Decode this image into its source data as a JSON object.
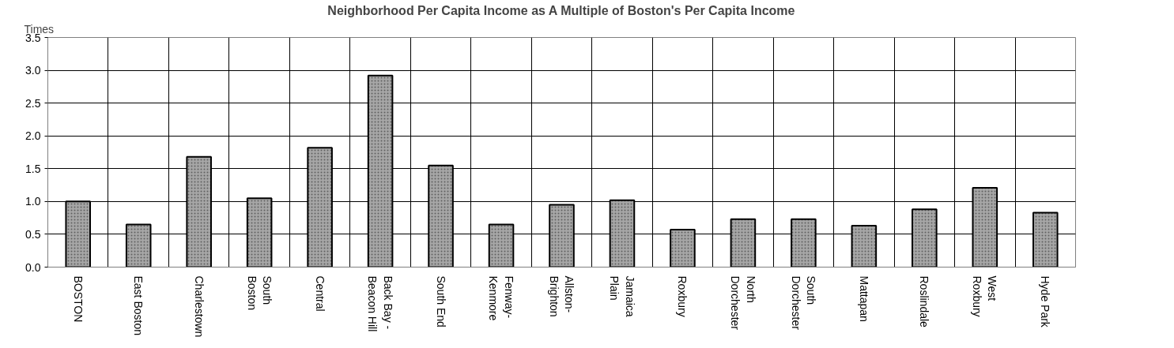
{
  "chart_data": {
    "type": "bar",
    "title": "Neighborhood Per Capita Income as A Multiple of Boston's Per Capita Income",
    "ylabel": "Times",
    "categories": [
      "BOSTON",
      "East Boston",
      "Charlestown",
      "South\nBoston",
      "Central",
      "Back Bay -\nBeacon Hill",
      "South End",
      "Fenway-\nKenmore",
      "Allston-\nBrighton",
      "Jamaica\nPlain",
      "Roxbury",
      "North\nDorchester",
      "South\nDorchester",
      "Mattapan",
      "Roslindale",
      "West\nRoxbury",
      "Hyde Park"
    ],
    "values": [
      1.0,
      0.65,
      1.68,
      1.05,
      1.82,
      2.92,
      1.55,
      0.65,
      0.95,
      1.02,
      0.57,
      0.73,
      0.73,
      0.63,
      0.88,
      1.21,
      0.83
    ],
    "color": "#a6a6a6",
    "ylim": [
      0,
      3.5
    ],
    "yticks": [
      {
        "value": 0,
        "label": "0.0"
      },
      {
        "value": 0.5,
        "label": "0.5"
      },
      {
        "value": 1,
        "label": "1.0"
      },
      {
        "value": 1.5,
        "label": "1.5"
      },
      {
        "value": 2,
        "label": "2.0"
      },
      {
        "value": 2.5,
        "label": "2.5"
      },
      {
        "value": 3,
        "label": "3.0"
      },
      {
        "value": 3.5,
        "label": "3.5"
      }
    ],
    "grid": true
  }
}
